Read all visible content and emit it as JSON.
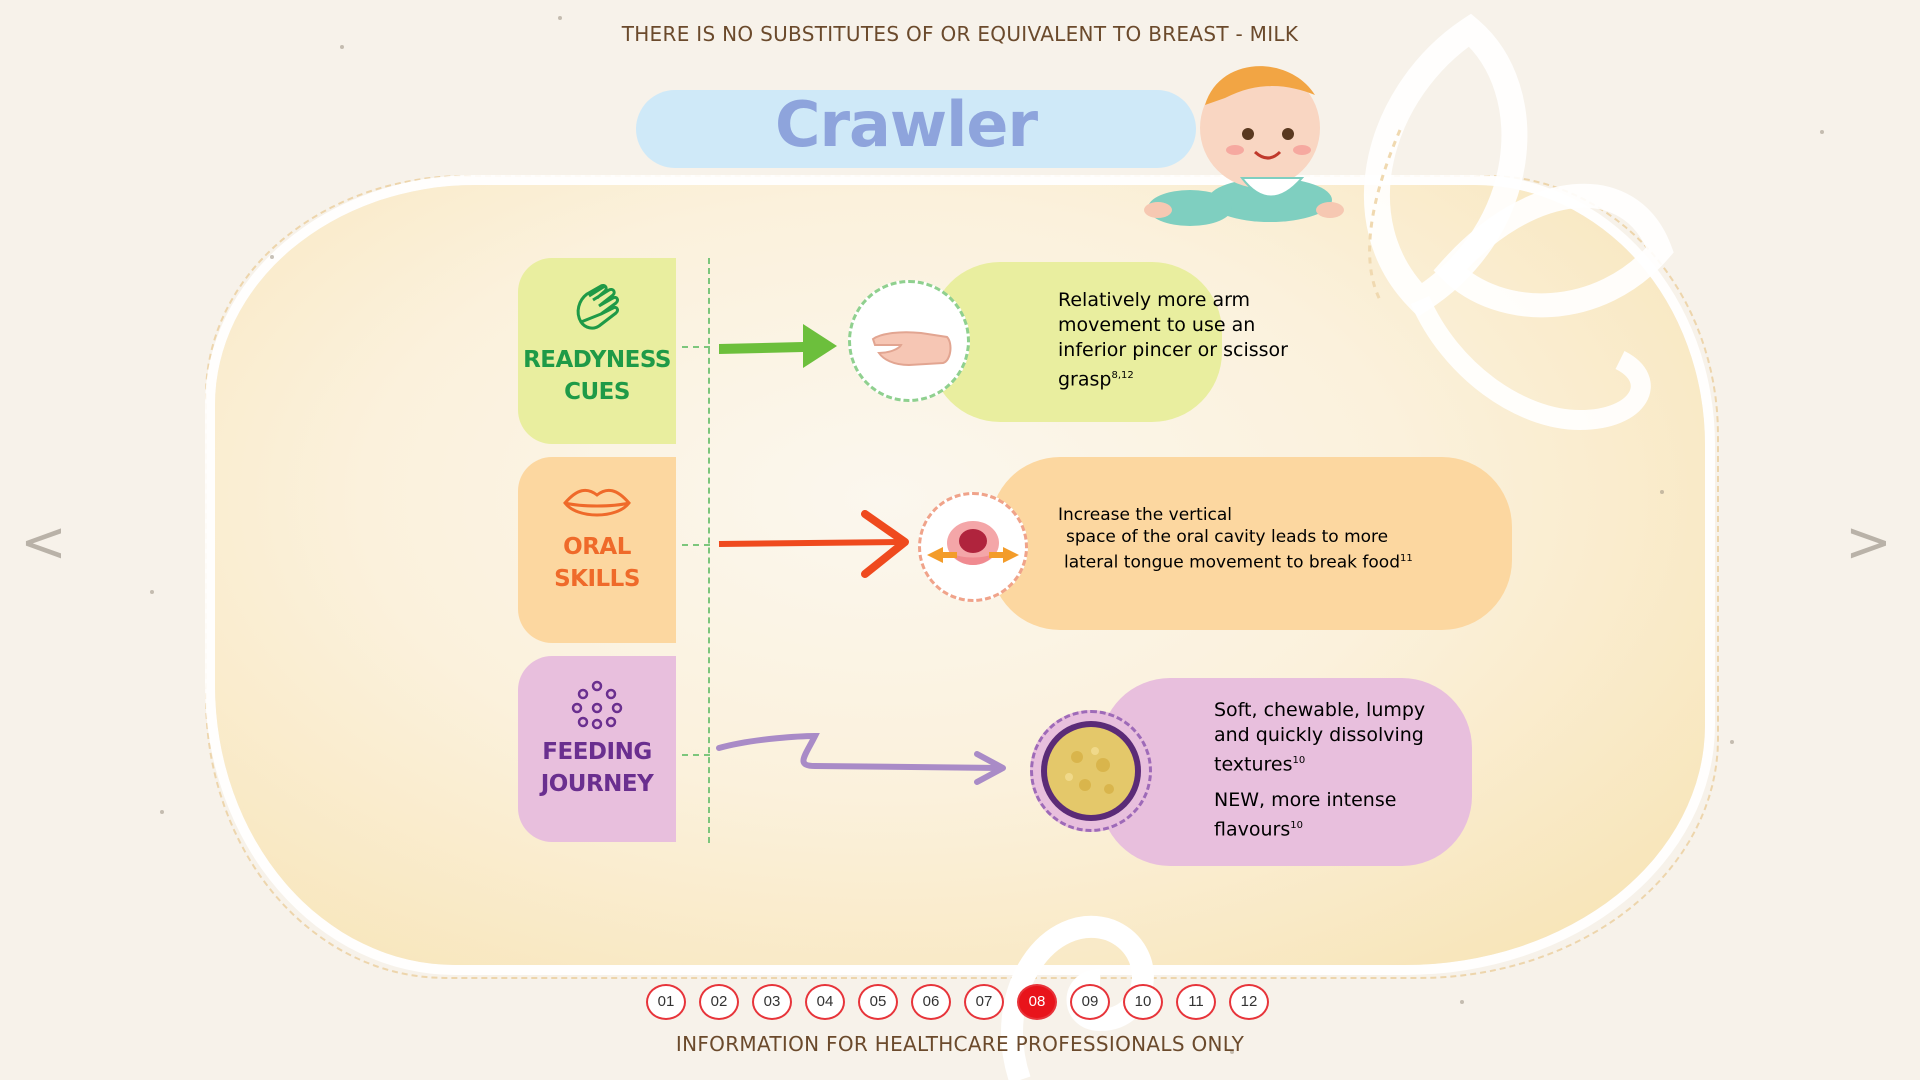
{
  "header": {
    "disclaimer": "THERE IS NO SUBSTITUTES OF OR EQUIVALENT TO BREAST - MILK"
  },
  "page": {
    "title": "Crawler"
  },
  "sections": [
    {
      "label_line1": "READYNESS",
      "label_line2": "CUES",
      "icon": "hand-icon",
      "color": "#1f9a47",
      "text": "Relatively more arm movement to use an inferior pincer or scissor grasp",
      "ref": "8,12"
    },
    {
      "label_line1": "ORAL",
      "label_line2": "SKILLS",
      "icon": "lips-icon",
      "color": "#ef6a2a",
      "text_line1": "Increase the vertical",
      "text_line2": "space of the oral cavity leads to more",
      "text_line3": "lateral tongue movement to break food",
      "ref": "11"
    },
    {
      "label_line1": "FEEDING",
      "label_line2": "JOURNEY",
      "icon": "dots-icon",
      "color": "#6a2f8f",
      "text1": "Soft, chewable, lumpy and quickly dissolving textures",
      "ref1": "10",
      "text2": "NEW, more intense flavours",
      "ref2": "10"
    }
  ],
  "navigation": {
    "prev": "<",
    "next": ">",
    "pages": [
      "01",
      "02",
      "03",
      "04",
      "05",
      "06",
      "07",
      "08",
      "09",
      "10",
      "11",
      "12"
    ],
    "active_page": "08"
  },
  "footer": {
    "disclaimer": "INFORMATION FOR HEALTHCARE PROFESSIONALS ONLY"
  },
  "colors": {
    "accent_red": "#e8141b",
    "title_blue": "#8ea4dc",
    "text_brown": "#5b3a1d"
  }
}
